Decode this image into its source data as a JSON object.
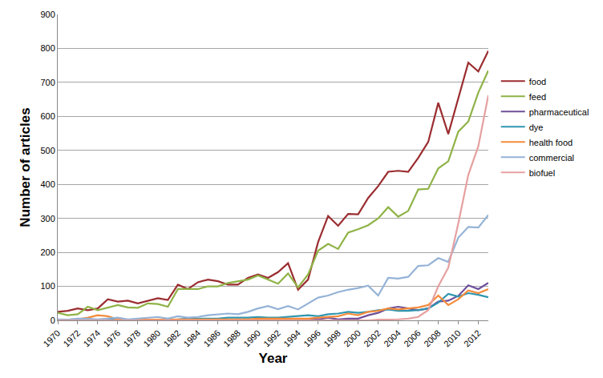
{
  "chart_data": {
    "type": "line",
    "x_label": "Year",
    "y_label": "Number of articles",
    "x": [
      1970,
      1971,
      1972,
      1973,
      1974,
      1975,
      1976,
      1977,
      1978,
      1979,
      1980,
      1981,
      1982,
      1983,
      1984,
      1985,
      1986,
      1987,
      1988,
      1989,
      1990,
      1991,
      1992,
      1993,
      1994,
      1995,
      1996,
      1997,
      1998,
      1999,
      2000,
      2001,
      2002,
      2003,
      2004,
      2005,
      2006,
      2007,
      2008,
      2009,
      2010,
      2011,
      2012,
      2013
    ],
    "xlim": [
      1970,
      2013
    ],
    "xticks": [
      1970,
      1972,
      1974,
      1976,
      1978,
      1980,
      1982,
      1984,
      1986,
      1988,
      1990,
      1992,
      1994,
      1996,
      1998,
      2000,
      2002,
      2004,
      2006,
      2008,
      2010,
      2012
    ],
    "ylim": [
      0,
      900
    ],
    "yticks": [
      0,
      100,
      200,
      300,
      400,
      500,
      600,
      700,
      800,
      900
    ],
    "grid": true,
    "legend": "right",
    "series": [
      {
        "name": "food",
        "color": "#9b2d30",
        "values": [
          25,
          28,
          35,
          30,
          35,
          62,
          55,
          58,
          50,
          57,
          65,
          60,
          105,
          92,
          112,
          120,
          115,
          105,
          105,
          125,
          135,
          125,
          142,
          168,
          90,
          120,
          230,
          307,
          278,
          313,
          312,
          360,
          395,
          437,
          440,
          437,
          478,
          525,
          640,
          548,
          655,
          758,
          732,
          793
        ]
      },
      {
        "name": "feed",
        "color": "#8fb347",
        "values": [
          22,
          15,
          18,
          40,
          30,
          38,
          45,
          38,
          37,
          50,
          48,
          40,
          92,
          92,
          92,
          100,
          100,
          110,
          115,
          120,
          132,
          120,
          108,
          138,
          97,
          135,
          205,
          225,
          210,
          258,
          268,
          280,
          300,
          333,
          305,
          322,
          385,
          387,
          447,
          468,
          555,
          585,
          670,
          735
        ]
      },
      {
        "name": "pharmaceutical",
        "color": "#6f4f9a",
        "values": [
          0,
          0,
          0,
          0,
          0,
          0,
          0,
          0,
          0,
          0,
          0,
          0,
          0,
          0,
          0,
          0,
          0,
          0,
          2,
          3,
          3,
          3,
          3,
          3,
          3,
          3,
          3,
          8,
          3,
          5,
          5,
          15,
          22,
          35,
          40,
          35,
          30,
          35,
          55,
          58,
          72,
          103,
          92,
          110
        ]
      },
      {
        "name": "dye",
        "color": "#2e96b0",
        "values": [
          2,
          2,
          2,
          3,
          3,
          3,
          3,
          3,
          3,
          3,
          3,
          3,
          3,
          5,
          5,
          5,
          5,
          8,
          8,
          8,
          10,
          8,
          8,
          10,
          12,
          15,
          12,
          18,
          20,
          25,
          22,
          25,
          30,
          32,
          28,
          28,
          30,
          35,
          52,
          78,
          70,
          80,
          75,
          68
        ]
      },
      {
        "name": "health food",
        "color": "#f58b3c",
        "values": [
          0,
          0,
          3,
          8,
          15,
          12,
          3,
          0,
          2,
          2,
          2,
          2,
          2,
          3,
          3,
          3,
          3,
          3,
          3,
          3,
          5,
          5,
          5,
          5,
          5,
          5,
          8,
          10,
          12,
          20,
          15,
          25,
          28,
          35,
          32,
          35,
          38,
          45,
          73,
          45,
          62,
          88,
          80,
          92
        ]
      },
      {
        "name": "commercial",
        "color": "#95b3d7",
        "values": [
          3,
          2,
          5,
          5,
          3,
          5,
          8,
          3,
          5,
          8,
          10,
          5,
          12,
          8,
          10,
          15,
          18,
          20,
          18,
          25,
          35,
          42,
          33,
          42,
          32,
          50,
          67,
          73,
          83,
          90,
          95,
          102,
          73,
          125,
          123,
          128,
          160,
          162,
          183,
          172,
          243,
          275,
          273,
          310
        ]
      },
      {
        "name": "biofuel",
        "color": "#e6a0a0",
        "values": [
          0,
          0,
          0,
          0,
          0,
          0,
          0,
          0,
          0,
          0,
          0,
          0,
          0,
          0,
          0,
          0,
          0,
          0,
          0,
          0,
          0,
          0,
          0,
          0,
          0,
          0,
          0,
          0,
          0,
          0,
          0,
          0,
          2,
          2,
          3,
          5,
          10,
          30,
          100,
          155,
          285,
          428,
          512,
          662
        ]
      }
    ]
  }
}
